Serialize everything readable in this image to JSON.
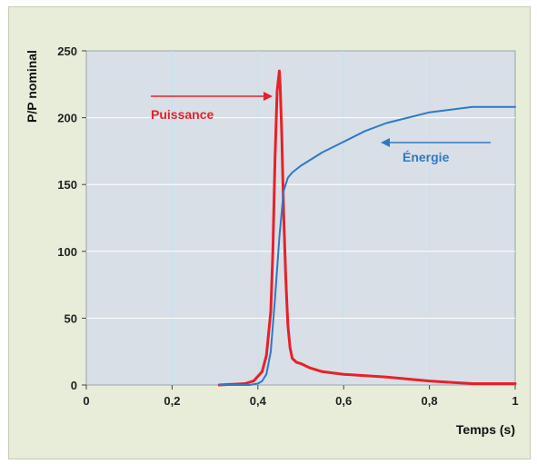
{
  "chart_data": {
    "type": "line",
    "xlabel": "Temps (s)",
    "ylabel": "P/P nominal",
    "xlim": [
      0,
      1
    ],
    "ylim": [
      0,
      250
    ],
    "x_ticks": [
      "0",
      "0,2",
      "0,4",
      "0,6",
      "0,8",
      "1"
    ],
    "y_ticks": [
      "0",
      "50",
      "100",
      "150",
      "200",
      "250"
    ],
    "grid": true,
    "series": [
      {
        "name": "Puissance",
        "color": "#e8202a",
        "x": [
          0.31,
          0.37,
          0.39,
          0.41,
          0.42,
          0.43,
          0.435,
          0.44,
          0.445,
          0.45,
          0.452,
          0.456,
          0.46,
          0.465,
          0.47,
          0.475,
          0.48,
          0.49,
          0.5,
          0.52,
          0.55,
          0.6,
          0.7,
          0.8,
          0.9,
          1.0
        ],
        "y": [
          0,
          1,
          3,
          10,
          22,
          55,
          100,
          170,
          220,
          235,
          225,
          185,
          130,
          80,
          45,
          28,
          20,
          17,
          16,
          13,
          10,
          8,
          6,
          3,
          1,
          1
        ]
      },
      {
        "name": "Énergie",
        "color": "#2f79c4",
        "x": [
          0.31,
          0.38,
          0.4,
          0.41,
          0.42,
          0.43,
          0.44,
          0.45,
          0.46,
          0.47,
          0.48,
          0.5,
          0.55,
          0.6,
          0.65,
          0.7,
          0.8,
          0.9,
          1.0
        ],
        "y": [
          0,
          0,
          1,
          3,
          8,
          25,
          65,
          110,
          145,
          155,
          159,
          164,
          174,
          182,
          190,
          196,
          204,
          208,
          208
        ]
      }
    ],
    "annotations": [
      {
        "text": "Puissance",
        "color": "#e8202a"
      },
      {
        "text": "Énergie",
        "color": "#2f79c4"
      }
    ]
  }
}
